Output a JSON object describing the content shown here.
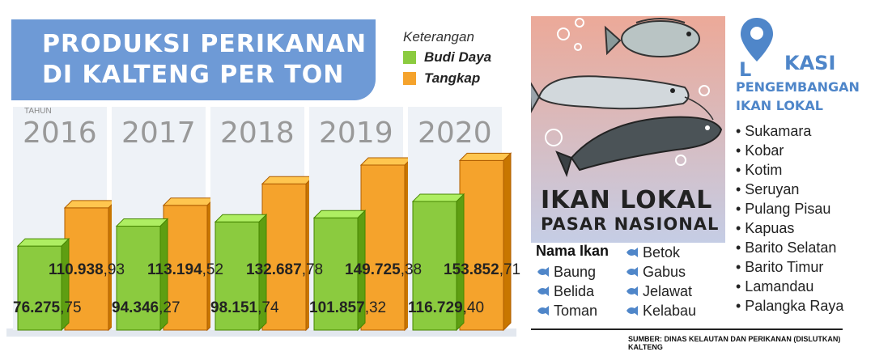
{
  "chart_data": {
    "type": "bar",
    "title": "PRODUKSI PERIKANAN DI KALTENG PER TON",
    "title_lines": [
      "PRODUKSI PERIKANAN",
      "DI KALTENG PER TON"
    ],
    "xlabel": "TAHUN",
    "ylabel": "",
    "categories": [
      "2016",
      "2017",
      "2018",
      "2019",
      "2020"
    ],
    "legend_title": "Keterangan",
    "legend_position": "top-right",
    "series": [
      {
        "name": "Budi Daya",
        "color": "#8bcb3f",
        "values": [
          76275.75,
          94346.27,
          98151.74,
          101857.32,
          116729.4
        ],
        "labels": [
          {
            "bold": "76.275",
            "rest": ",75"
          },
          {
            "bold": "94.346",
            "rest": ",27"
          },
          {
            "bold": "98.151",
            "rest": ",74"
          },
          {
            "bold": "101.857",
            "rest": ",32"
          },
          {
            "bold": "116.729",
            "rest": ",40"
          }
        ]
      },
      {
        "name": "Tangkap",
        "color": "#f5a32c",
        "values": [
          110938.93,
          113194.52,
          132687.78,
          149725.38,
          153852.71
        ],
        "labels": [
          {
            "bold": "110.938",
            "rest": ",93"
          },
          {
            "bold": "113.194",
            "rest": ",52"
          },
          {
            "bold": "132.687",
            "rest": ",78"
          },
          {
            "bold": "149.725",
            "rest": ",38"
          },
          {
            "bold": "153.852",
            "rest": ",71"
          }
        ]
      }
    ],
    "ylim": [
      0,
      160000
    ],
    "grid": false
  },
  "fish_panel": {
    "title": "IKAN LOKAL",
    "subtitle": "PASAR NASIONAL",
    "names_header": "Nama Ikan",
    "names_col1": [
      "Baung",
      "Belida",
      "Toman"
    ],
    "names_col2": [
      "Betok",
      "Gabus",
      "Jelawat",
      "Kelabau"
    ],
    "icon": "fish-icon"
  },
  "lokasi": {
    "title_first": "L",
    "title_rest": "KASI",
    "subtitle_1": "PENGEMBANGAN",
    "subtitle_2": "IKAN LOKAL",
    "icon": "map-pin-icon",
    "items": [
      "Sukamara",
      "Kobar",
      "Kotim",
      "Seruyan",
      "Pulang Pisau",
      "Kapuas",
      "Barito Selatan",
      "Barito Timur",
      "Lamandau",
      "Palangka Raya"
    ]
  },
  "source": "SUMBER: DINAS KELAUTAN DAN PERIKANAN (DISLUTKAN) KALTENG",
  "colors": {
    "title_bg": "#6e9ad6",
    "accent_blue": "#4f86c9",
    "budi_daya": "#8bcb3f",
    "tangkap": "#f5a32c"
  }
}
